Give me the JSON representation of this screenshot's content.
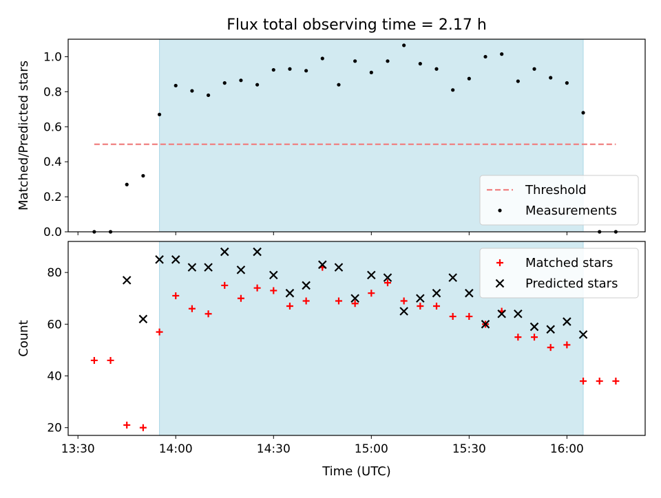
{
  "title": "Flux total observing time = 2.17 h",
  "shade_color": "#add8e6",
  "chart_data": [
    {
      "type": "scatter",
      "ylabel": "Matched/Predicted stars",
      "xlabel": "",
      "xlim": [
        "13:27",
        "16:24"
      ],
      "ylim": [
        0,
        1.1
      ],
      "yticks": [
        "0.0",
        "0.2",
        "0.4",
        "0.6",
        "0.8",
        "1.0"
      ],
      "shaded_span": [
        "13:55",
        "16:05"
      ],
      "legend_position": "lower right",
      "threshold": {
        "name": "Threshold",
        "y": 0.5,
        "x": [
          "13:35",
          "16:15"
        ],
        "color": "#f08080",
        "style": "dashed"
      },
      "series": [
        {
          "name": "Measurements",
          "marker": "dot",
          "color": "#000000",
          "x": [
            "13:35",
            "13:40",
            "13:45",
            "13:50",
            "13:55",
            "14:00",
            "14:05",
            "14:10",
            "14:15",
            "14:20",
            "14:25",
            "14:30",
            "14:35",
            "14:40",
            "14:45",
            "14:50",
            "14:55",
            "15:00",
            "15:05",
            "15:10",
            "15:15",
            "15:20",
            "15:25",
            "15:30",
            "15:35",
            "15:40",
            "15:45",
            "15:50",
            "15:55",
            "16:00",
            "16:05",
            "16:10",
            "16:15"
          ],
          "y": [
            0.0,
            0.0,
            0.27,
            0.32,
            0.67,
            0.835,
            0.805,
            0.78,
            0.85,
            0.865,
            0.84,
            0.925,
            0.93,
            0.92,
            0.99,
            0.84,
            0.975,
            0.91,
            0.975,
            1.065,
            0.96,
            0.93,
            0.81,
            0.875,
            1.0,
            1.015,
            0.86,
            0.93,
            0.88,
            0.85,
            0.68,
            0.0,
            0.0
          ]
        }
      ]
    },
    {
      "type": "scatter",
      "ylabel": "Count",
      "xlabel": "Time (UTC)",
      "xlim": [
        "13:27",
        "16:24"
      ],
      "ylim": [
        17,
        92
      ],
      "yticks": [
        "20",
        "40",
        "60",
        "80"
      ],
      "xticks": [
        "13:30",
        "14:00",
        "14:30",
        "15:00",
        "15:30",
        "16:00"
      ],
      "shaded_span": [
        "13:55",
        "16:05"
      ],
      "legend_position": "upper right",
      "series": [
        {
          "name": "Matched stars",
          "marker": "plus",
          "color": "#ff0000",
          "x": [
            "13:35",
            "13:40",
            "13:45",
            "13:50",
            "13:55",
            "14:00",
            "14:05",
            "14:10",
            "14:15",
            "14:20",
            "14:25",
            "14:30",
            "14:35",
            "14:40",
            "14:45",
            "14:50",
            "14:55",
            "15:00",
            "15:05",
            "15:10",
            "15:15",
            "15:20",
            "15:25",
            "15:30",
            "15:35",
            "15:40",
            "15:45",
            "15:50",
            "15:55",
            "16:00",
            "16:05",
            "16:10",
            "16:15"
          ],
          "y": [
            46,
            46,
            21,
            20,
            57,
            71,
            66,
            64,
            75,
            70,
            74,
            73,
            67,
            69,
            82,
            69,
            68,
            72,
            76,
            69,
            67,
            67,
            63,
            63,
            60,
            65,
            55,
            55,
            51,
            52,
            38,
            38,
            38
          ]
        },
        {
          "name": "Predicted stars",
          "marker": "x",
          "color": "#000000",
          "x": [
            "13:45",
            "13:50",
            "13:55",
            "14:00",
            "14:05",
            "14:10",
            "14:15",
            "14:20",
            "14:25",
            "14:30",
            "14:35",
            "14:40",
            "14:45",
            "14:50",
            "14:55",
            "15:00",
            "15:05",
            "15:10",
            "15:15",
            "15:20",
            "15:25",
            "15:30",
            "15:35",
            "15:40",
            "15:45",
            "15:50",
            "15:55",
            "16:00",
            "16:05"
          ],
          "y": [
            77,
            62,
            85,
            85,
            82,
            82,
            88,
            81,
            88,
            79,
            72,
            75,
            83,
            82,
            70,
            79,
            78,
            65,
            70,
            72,
            78,
            72,
            60,
            64,
            64,
            59,
            58,
            61,
            56
          ]
        }
      ]
    }
  ]
}
